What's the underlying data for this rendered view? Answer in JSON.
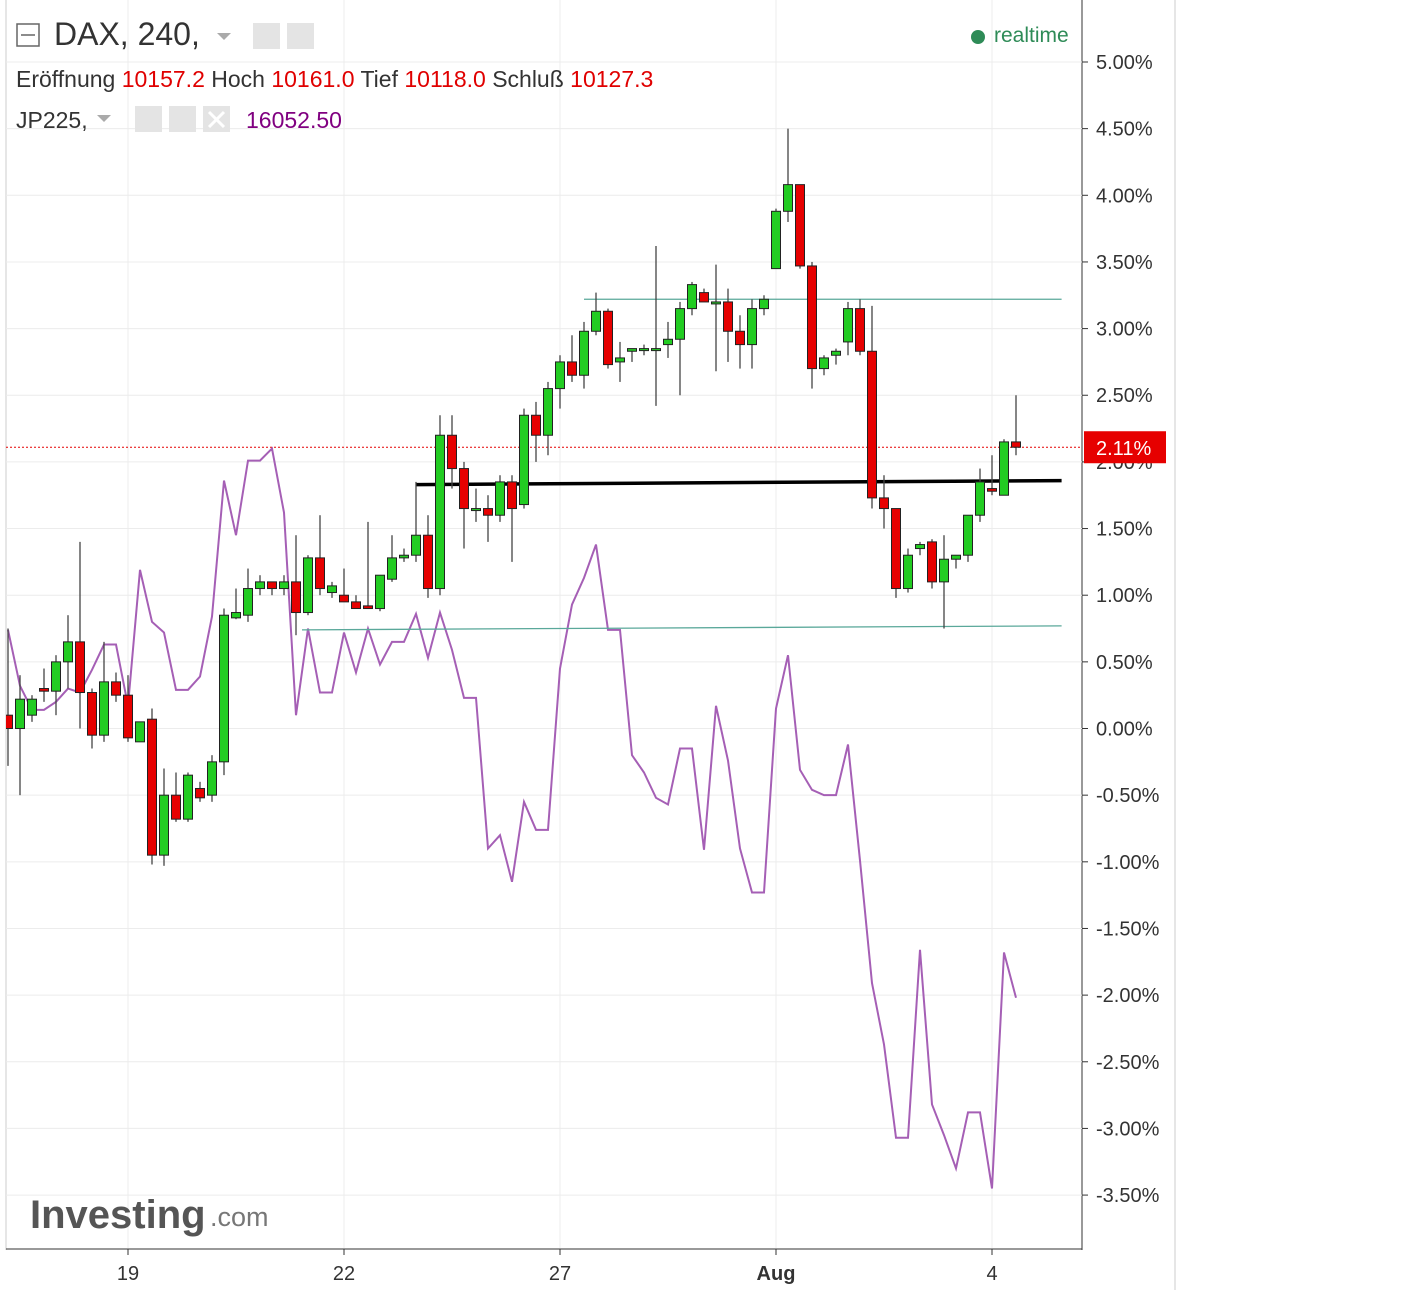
{
  "chart_data": {
    "type": "candlestick",
    "symbol": "DAX, 240,",
    "ohlc_labels": [
      "Eröffnung",
      "Hoch",
      "Tief",
      "Schluß"
    ],
    "ohlc_values": [
      "10157.2",
      "10161.0",
      "10118.0",
      "10127.3"
    ],
    "status": "realtime",
    "compare_symbol": "JP225,",
    "compare_value": "16052.50",
    "watermark": [
      "Investing",
      ".com"
    ],
    "up_color": "#22cc22",
    "down_color": "#e60000",
    "categories": [
      null,
      null,
      null,
      null,
      null,
      null,
      null,
      null,
      null,
      null,
      "19",
      null,
      null,
      null,
      null,
      null,
      null,
      null,
      null,
      null,
      null,
      null,
      null,
      null,
      null,
      null,
      null,
      null,
      "22",
      null,
      null,
      null,
      null,
      null,
      null,
      null,
      null,
      null,
      null,
      null,
      null,
      null,
      null,
      null,
      null,
      null,
      "27",
      null,
      null,
      null,
      null,
      null,
      null,
      null,
      null,
      null,
      null,
      null,
      null,
      null,
      null,
      null,
      null,
      null,
      "Aug",
      null,
      null,
      null,
      null,
      null,
      null,
      null,
      null,
      null,
      null,
      null,
      null,
      null,
      null,
      null,
      null,
      null,
      "4",
      null,
      null
    ],
    "open": [
      0.1,
      0.0,
      0.1,
      0.3,
      0.28,
      0.5,
      0.65,
      0.27,
      -0.05,
      0.35,
      0.25,
      -0.1,
      0.07,
      -0.95,
      -0.5,
      -0.68,
      -0.45,
      -0.5,
      -0.25,
      0.83,
      0.85,
      1.05,
      1.1,
      1.05,
      1.1,
      0.87,
      1.28,
      1.02,
      1.0,
      0.95,
      0.92,
      0.9,
      1.12,
      1.28,
      1.3,
      1.45,
      1.05,
      2.2,
      1.95,
      1.65,
      1.65,
      1.6,
      1.85,
      1.68,
      2.35,
      2.2,
      2.55,
      2.75,
      2.65,
      2.98,
      3.13,
      2.75,
      2.83,
      2.85,
      2.85,
      2.88,
      2.92,
      3.15,
      3.27,
      3.2,
      3.2,
      2.98,
      2.88,
      3.15,
      3.45,
      3.88,
      4.08,
      3.47,
      2.7,
      2.8,
      2.9,
      3.15,
      2.83,
      1.73,
      1.65,
      1.05,
      1.35,
      1.4,
      1.1,
      1.27,
      1.3,
      1.6,
      1.8,
      1.75,
      2.15
    ],
    "high": [
      0.75,
      0.4,
      0.25,
      0.45,
      0.55,
      0.85,
      1.4,
      0.3,
      0.65,
      0.42,
      0.4,
      0.05,
      0.15,
      -0.3,
      -0.33,
      -0.33,
      -0.4,
      -0.2,
      0.9,
      1.05,
      1.2,
      1.15,
      1.1,
      1.15,
      1.45,
      1.3,
      1.6,
      1.1,
      1.2,
      1.0,
      1.55,
      1.15,
      1.45,
      1.35,
      1.85,
      1.6,
      2.35,
      2.35,
      2.0,
      1.8,
      1.75,
      1.9,
      1.9,
      2.4,
      2.45,
      2.6,
      2.8,
      2.95,
      3.05,
      3.27,
      3.15,
      2.9,
      2.85,
      2.88,
      3.62,
      3.05,
      3.2,
      3.35,
      3.3,
      3.48,
      3.3,
      3.1,
      3.22,
      3.25,
      3.9,
      4.5,
      4.08,
      3.5,
      2.8,
      2.85,
      3.2,
      3.22,
      3.17,
      1.9,
      1.65,
      1.35,
      1.4,
      1.42,
      1.45,
      1.3,
      1.6,
      1.95,
      2.05,
      2.17,
      2.5
    ],
    "low": [
      -0.28,
      -0.5,
      0.05,
      0.2,
      0.1,
      0.3,
      0.0,
      -0.15,
      -0.1,
      0.2,
      -0.1,
      -0.1,
      -1.02,
      -1.03,
      -0.7,
      -0.7,
      -0.55,
      -0.55,
      -0.35,
      0.82,
      0.8,
      1.0,
      1.0,
      1.0,
      0.7,
      0.85,
      1.0,
      0.98,
      0.95,
      0.9,
      0.9,
      0.88,
      1.1,
      1.25,
      1.25,
      0.98,
      1.0,
      1.8,
      1.35,
      1.55,
      1.4,
      1.55,
      1.25,
      1.65,
      2.0,
      2.05,
      2.4,
      2.6,
      2.55,
      2.95,
      2.7,
      2.6,
      2.75,
      2.8,
      2.42,
      2.78,
      2.5,
      3.1,
      3.2,
      2.68,
      2.75,
      2.7,
      2.7,
      3.1,
      3.45,
      3.8,
      3.45,
      2.55,
      2.65,
      2.73,
      2.8,
      2.8,
      1.65,
      1.5,
      0.98,
      1.02,
      1.3,
      1.05,
      0.75,
      1.2,
      1.25,
      1.55,
      1.75,
      1.75,
      2.05
    ],
    "close": [
      0.0,
      0.22,
      0.22,
      0.28,
      0.5,
      0.65,
      0.27,
      -0.05,
      0.35,
      0.25,
      -0.07,
      0.05,
      -0.95,
      -0.5,
      -0.68,
      -0.35,
      -0.52,
      -0.25,
      0.85,
      0.87,
      1.05,
      1.1,
      1.05,
      1.1,
      0.87,
      1.28,
      1.05,
      1.07,
      0.95,
      0.9,
      0.9,
      1.15,
      1.28,
      1.3,
      1.45,
      1.05,
      2.2,
      1.95,
      1.65,
      1.65,
      1.6,
      1.85,
      1.65,
      2.35,
      2.2,
      2.55,
      2.75,
      2.65,
      2.98,
      3.13,
      2.73,
      2.78,
      2.85,
      2.85,
      2.85,
      2.92,
      3.15,
      3.33,
      3.2,
      3.2,
      2.98,
      2.88,
      3.15,
      3.22,
      3.88,
      4.08,
      3.47,
      2.7,
      2.78,
      2.83,
      3.15,
      2.83,
      1.73,
      1.65,
      1.05,
      1.3,
      1.38,
      1.1,
      1.27,
      1.3,
      1.6,
      1.85,
      1.78,
      2.15,
      2.11
    ],
    "series": [
      {
        "name": "JP225",
        "color": "#a55fb5",
        "values": [
          0.74,
          0.32,
          0.14,
          0.14,
          0.2,
          0.3,
          0.27,
          0.44,
          0.63,
          0.63,
          0.17,
          1.19,
          0.8,
          0.72,
          0.29,
          0.29,
          0.39,
          0.84,
          1.86,
          1.45,
          2.01,
          2.01,
          2.1,
          1.62,
          0.1,
          0.75,
          0.27,
          0.27,
          0.72,
          0.42,
          0.75,
          0.48,
          0.65,
          0.65,
          0.86,
          0.53,
          0.87,
          0.59,
          0.23,
          0.23,
          -0.9,
          -0.8,
          -1.15,
          -0.55,
          -0.76,
          -0.76,
          0.45,
          0.93,
          1.13,
          1.38,
          0.74,
          0.74,
          -0.2,
          -0.33,
          -0.52,
          -0.57,
          -0.15,
          -0.15,
          -0.91,
          0.17,
          -0.24,
          -0.9,
          -1.23,
          -1.23,
          0.15,
          0.55,
          -0.31,
          -0.46,
          -0.5,
          -0.5,
          -0.12,
          -0.99,
          -1.91,
          -2.37,
          -3.07,
          -3.07,
          -1.66,
          -2.82,
          -3.05,
          -3.3,
          -2.88,
          -2.88,
          -3.45,
          -1.68,
          -2.02
        ]
      }
    ],
    "trend_lines": [
      {
        "color": "#000000",
        "start": [
          34,
          1.83
        ],
        "end": [
          87.8,
          1.86
        ]
      },
      {
        "color": "#5aa89a",
        "start": [
          48,
          3.22
        ],
        "end": [
          87.8,
          3.22
        ]
      },
      {
        "color": "#5aa89a",
        "start": [
          24.5,
          0.74
        ],
        "end": [
          87.8,
          0.77
        ]
      }
    ],
    "last_label": {
      "value": 2.11,
      "label": "2.11%"
    },
    "ylim": [
      -3.897,
      5.465
    ],
    "yticks": [
      {
        "value": 5,
        "label": "5.00%"
      },
      {
        "value": 4.5,
        "label": "4.50%"
      },
      {
        "value": 4,
        "label": "4.00%"
      },
      {
        "value": 3.5,
        "label": "3.50%"
      },
      {
        "value": 3,
        "label": "3.00%"
      },
      {
        "value": 2.5,
        "label": "2.50%"
      },
      {
        "value": 2,
        "label": "2.00%"
      },
      {
        "value": 1.5,
        "label": "1.50%"
      },
      {
        "value": 1,
        "label": "1.00%"
      },
      {
        "value": 0.5,
        "label": "0.50%"
      },
      {
        "value": 0,
        "label": "0.00%"
      },
      {
        "value": -0.5,
        "label": "-0.50%"
      },
      {
        "value": -1,
        "label": "-1.00%"
      },
      {
        "value": -1.5,
        "label": "-1.50%"
      },
      {
        "value": -2,
        "label": "-2.00%"
      },
      {
        "value": -2.5,
        "label": "-2.50%"
      },
      {
        "value": -3,
        "label": "-3.00%"
      },
      {
        "value": -3.5,
        "label": "-3.50%"
      }
    ],
    "grid": true
  }
}
